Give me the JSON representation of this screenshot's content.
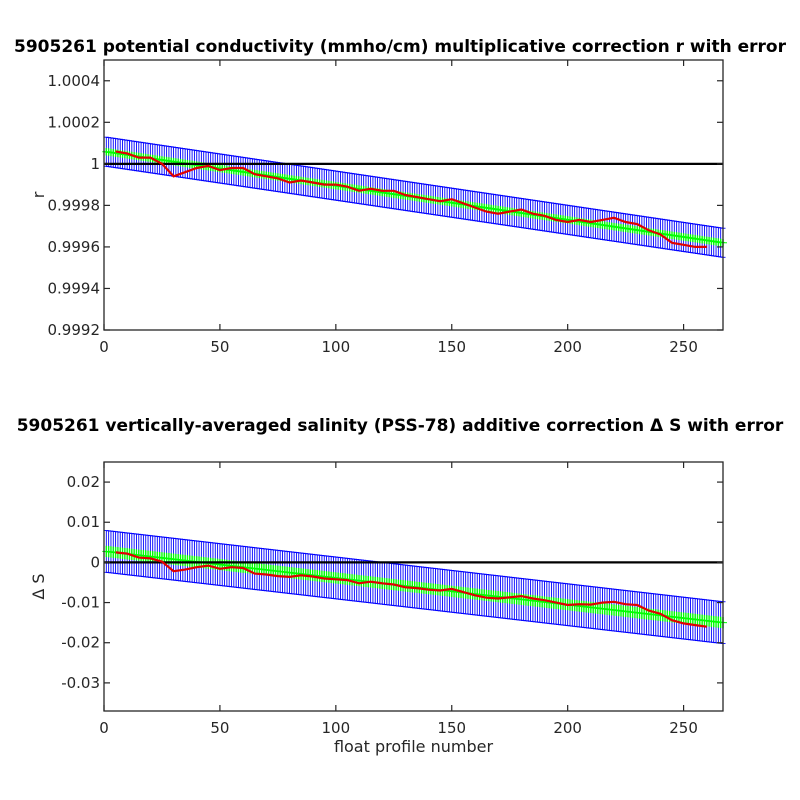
{
  "chart_data": [
    {
      "type": "line",
      "title": "5905261 potential conductivity (mmho/cm) multiplicative correction r with error",
      "xlabel": "",
      "ylabel": "r",
      "xlim": [
        0,
        267
      ],
      "ylim": [
        0.9992,
        1.0005
      ],
      "x_ticks": [
        0,
        50,
        100,
        150,
        200,
        250
      ],
      "x_tick_labels": [
        "0",
        "50",
        "100",
        "150",
        "200",
        "250"
      ],
      "y_ticks": [
        0.9992,
        0.9994,
        0.9996,
        0.9998,
        1,
        1.0002,
        1.0004
      ],
      "y_tick_labels": [
        "0.9992",
        "0.9994",
        "0.9996",
        "0.9998",
        "1",
        "1.0002",
        "1.0004"
      ],
      "reference_line": 1,
      "fit_start": 1.00006,
      "fit_end": 0.99962,
      "fit_error": 7e-05,
      "fit_error_inner": 1.8e-05,
      "series": [
        {
          "x": [
            5,
            10,
            15,
            20,
            25,
            30,
            35,
            40,
            45,
            50,
            55,
            60,
            65,
            70,
            75,
            80,
            85,
            90,
            95,
            100,
            105,
            110,
            115,
            120,
            125,
            130,
            135,
            140,
            145,
            150,
            155,
            160,
            165,
            170,
            175,
            180,
            185,
            190,
            195,
            200,
            205,
            210,
            215,
            220,
            225,
            230,
            235,
            240,
            245,
            250,
            255,
            260
          ],
          "values": [
            1.00006,
            1.00005,
            1.00003,
            1.00003,
            1.0,
            0.99994,
            0.99996,
            0.99998,
            0.99999,
            0.99997,
            0.99998,
            0.99998,
            0.99995,
            0.99994,
            0.99993,
            0.99991,
            0.99992,
            0.99991,
            0.9999,
            0.9999,
            0.99989,
            0.99987,
            0.99988,
            0.99987,
            0.99987,
            0.99985,
            0.99984,
            0.99983,
            0.99982,
            0.99983,
            0.99981,
            0.99979,
            0.99977,
            0.99976,
            0.99977,
            0.99978,
            0.99976,
            0.99975,
            0.99973,
            0.99972,
            0.99973,
            0.99972,
            0.99973,
            0.99974,
            0.99972,
            0.99971,
            0.99968,
            0.99966,
            0.99962,
            0.99961,
            0.9996,
            0.9996
          ]
        }
      ]
    },
    {
      "type": "line",
      "title": "5905261 vertically-averaged salinity (PSS-78) additive correction Δ S with error",
      "xlabel": "float profile number",
      "ylabel": "Δ S",
      "xlim": [
        0,
        267
      ],
      "ylim": [
        -0.037,
        0.025
      ],
      "x_ticks": [
        0,
        50,
        100,
        150,
        200,
        250
      ],
      "x_tick_labels": [
        "0",
        "50",
        "100",
        "150",
        "200",
        "250"
      ],
      "y_ticks": [
        -0.03,
        -0.02,
        -0.01,
        0,
        0.01,
        0.02
      ],
      "y_tick_labels": [
        "-0.03",
        "-0.02",
        "-0.01",
        "0",
        "0.01",
        "0.02"
      ],
      "reference_line": 0,
      "fit_start": 0.0028,
      "fit_end": -0.015,
      "fit_error": 0.0052,
      "fit_error_inner": 0.0014,
      "series": [
        {
          "x": [
            5,
            10,
            15,
            20,
            25,
            30,
            35,
            40,
            45,
            50,
            55,
            60,
            65,
            70,
            75,
            80,
            85,
            90,
            95,
            100,
            105,
            110,
            115,
            120,
            125,
            130,
            135,
            140,
            145,
            150,
            155,
            160,
            165,
            170,
            175,
            180,
            185,
            190,
            195,
            200,
            205,
            210,
            215,
            220,
            225,
            230,
            235,
            240,
            245,
            250,
            255,
            260
          ],
          "values": [
            0.0025,
            0.0022,
            0.0012,
            0.001,
            0.0002,
            -0.0022,
            -0.0018,
            -0.0012,
            -0.0008,
            -0.0016,
            -0.0012,
            -0.0014,
            -0.0028,
            -0.003,
            -0.0034,
            -0.0036,
            -0.0032,
            -0.0035,
            -0.004,
            -0.0042,
            -0.0044,
            -0.0052,
            -0.0048,
            -0.0052,
            -0.0055,
            -0.0062,
            -0.0064,
            -0.0068,
            -0.007,
            -0.0066,
            -0.0074,
            -0.0082,
            -0.0088,
            -0.009,
            -0.0087,
            -0.0084,
            -0.009,
            -0.0094,
            -0.01,
            -0.0106,
            -0.0104,
            -0.0105,
            -0.01,
            -0.0098,
            -0.0104,
            -0.0106,
            -0.012,
            -0.0128,
            -0.0144,
            -0.0152,
            -0.0156,
            -0.016
          ]
        }
      ]
    }
  ],
  "colors": {
    "error_bars": "#0000ff",
    "fit_markers": "#00ff00",
    "correction_line": "#e00000",
    "reference_line": "#000000",
    "axes": "#262626"
  }
}
